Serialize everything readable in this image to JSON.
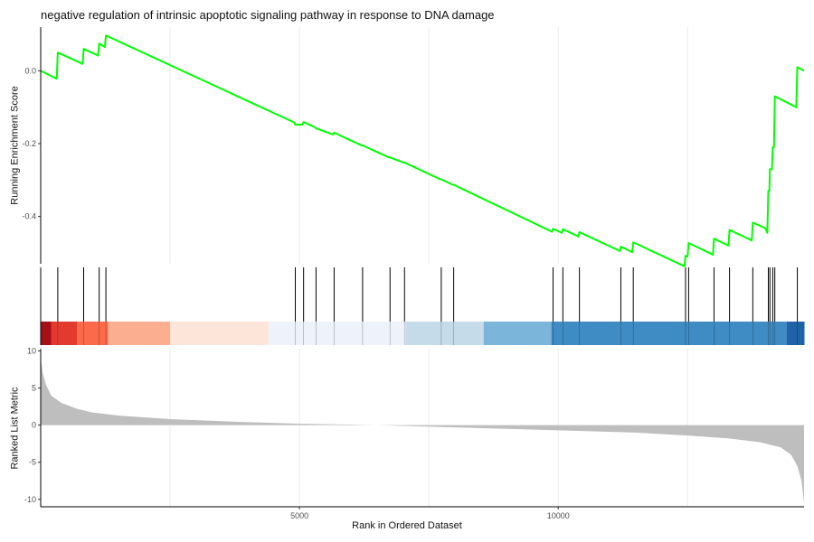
{
  "chart_data": {
    "type": "line",
    "title": "negative regulation of intrinsic apoptotic signaling pathway in response to DNA damage",
    "xlabel": "Rank in Ordered Dataset",
    "n_genes": 14750,
    "colors": {
      "curve": "#00ff00",
      "ranked_fill": "#bebebe",
      "hit_line": "#000000",
      "axis": "#000000",
      "grid": "#ebebeb"
    },
    "x_ticks": [
      5000,
      10000
    ],
    "panels": {
      "running_score": {
        "ylabel": "Running Enrichment Score",
        "ylim": [
          -0.53,
          0.12
        ],
        "y_ticks": [
          0.0,
          -0.2,
          -0.4
        ],
        "y_tick_labels": [
          "0.0",
          "-0.2",
          "-0.4"
        ],
        "curve": [
          [
            0,
            0.0
          ],
          [
            310,
            -0.022
          ],
          [
            330,
            0.05
          ],
          [
            810,
            0.019
          ],
          [
            830,
            0.06
          ],
          [
            1110,
            0.042
          ],
          [
            1130,
            0.075
          ],
          [
            1240,
            0.065
          ],
          [
            1260,
            0.097
          ],
          [
            4900,
            -0.142
          ],
          [
            4920,
            -0.148
          ],
          [
            5060,
            -0.148
          ],
          [
            5080,
            -0.141
          ],
          [
            5300,
            -0.155
          ],
          [
            5320,
            -0.158
          ],
          [
            5650,
            -0.175
          ],
          [
            5670,
            -0.17
          ],
          [
            6200,
            -0.205
          ],
          [
            6220,
            -0.205
          ],
          [
            6730,
            -0.238
          ],
          [
            6750,
            -0.238
          ],
          [
            7010,
            -0.252
          ],
          [
            7030,
            -0.252
          ],
          [
            7720,
            -0.298
          ],
          [
            7740,
            -0.298
          ],
          [
            7960,
            -0.313
          ],
          [
            7980,
            -0.313
          ],
          [
            9880,
            -0.442
          ],
          [
            9900,
            -0.434
          ],
          [
            10070,
            -0.445
          ],
          [
            10090,
            -0.435
          ],
          [
            10390,
            -0.455
          ],
          [
            10410,
            -0.443
          ],
          [
            11190,
            -0.495
          ],
          [
            11210,
            -0.483
          ],
          [
            11430,
            -0.498
          ],
          [
            11450,
            -0.471
          ],
          [
            12440,
            -0.537
          ],
          [
            12460,
            -0.508
          ],
          [
            12500,
            -0.51
          ],
          [
            12520,
            -0.473
          ],
          [
            12990,
            -0.505
          ],
          [
            13010,
            -0.461
          ],
          [
            13290,
            -0.48
          ],
          [
            13310,
            -0.437
          ],
          [
            13740,
            -0.466
          ],
          [
            13760,
            -0.417
          ],
          [
            14000,
            -0.432
          ],
          [
            14040,
            -0.445
          ],
          [
            14060,
            -0.33
          ],
          [
            14080,
            -0.33
          ],
          [
            14090,
            -0.27
          ],
          [
            14130,
            -0.27
          ],
          [
            14145,
            -0.21
          ],
          [
            14170,
            -0.21
          ],
          [
            14185,
            -0.07
          ],
          [
            14600,
            -0.1
          ],
          [
            14620,
            0.01
          ],
          [
            14750,
            0.0
          ]
        ]
      },
      "hits": {
        "positions": [
          330,
          830,
          1130,
          1260,
          4920,
          5080,
          5320,
          5670,
          6220,
          6750,
          7030,
          7740,
          7980,
          9900,
          10090,
          10410,
          11210,
          11450,
          12460,
          12520,
          13010,
          13310,
          13760,
          14060,
          14090,
          14145,
          14185,
          14620
        ]
      },
      "color_bar": {
        "segments": [
          {
            "from": 0,
            "to": 200,
            "color": "#a50f15"
          },
          {
            "from": 200,
            "to": 700,
            "color": "#e23a2f"
          },
          {
            "from": 700,
            "to": 1300,
            "color": "#fb6a4a"
          },
          {
            "from": 1300,
            "to": 2500,
            "color": "#fcae91"
          },
          {
            "from": 2500,
            "to": 4400,
            "color": "#fee5d9"
          },
          {
            "from": 4400,
            "to": 7050,
            "color": "#eef3fb"
          },
          {
            "from": 7050,
            "to": 8560,
            "color": "#c6dbea"
          },
          {
            "from": 8560,
            "to": 9870,
            "color": "#7bb5d9"
          },
          {
            "from": 9870,
            "to": 14420,
            "color": "#3f8bc3"
          },
          {
            "from": 14420,
            "to": 14750,
            "color": "#1f62a8"
          }
        ]
      },
      "ranked_metric": {
        "ylabel": "Ranked List Metric",
        "ylim": [
          -11,
          10.3
        ],
        "y_ticks": [
          10,
          5,
          0,
          -5,
          -10
        ],
        "y_tick_labels": [
          "10",
          "5",
          "0",
          "-5",
          "-10"
        ],
        "profile": [
          [
            0,
            9.0
          ],
          [
            40,
            7.0
          ],
          [
            100,
            5.5
          ],
          [
            200,
            4.0
          ],
          [
            400,
            3.0
          ],
          [
            700,
            2.2
          ],
          [
            1000,
            1.7
          ],
          [
            1500,
            1.3
          ],
          [
            2500,
            0.8
          ],
          [
            4000,
            0.4
          ],
          [
            5000,
            0.2
          ],
          [
            6500,
            0.0
          ],
          [
            8000,
            -0.3
          ],
          [
            10000,
            -0.7
          ],
          [
            11500,
            -1.0
          ],
          [
            12500,
            -1.4
          ],
          [
            13300,
            -1.8
          ],
          [
            13900,
            -2.3
          ],
          [
            14300,
            -3.0
          ],
          [
            14500,
            -4.0
          ],
          [
            14620,
            -5.5
          ],
          [
            14700,
            -7.5
          ],
          [
            14750,
            -10.5
          ]
        ]
      }
    }
  }
}
